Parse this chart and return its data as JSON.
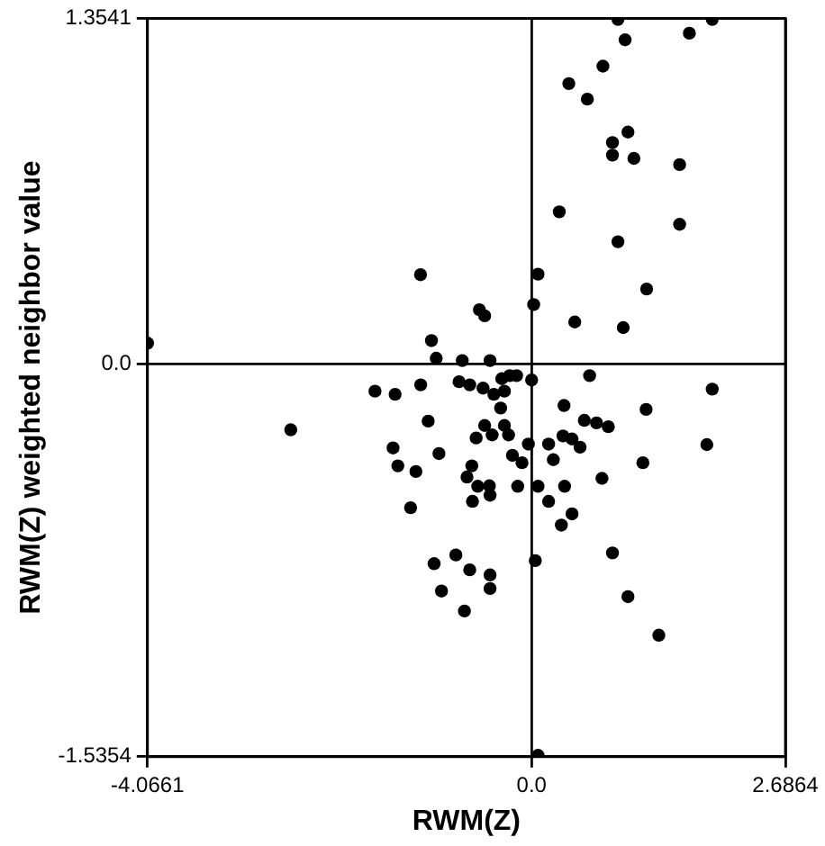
{
  "chart_data": {
    "type": "scatter",
    "xlabel": "RWM(Z)",
    "ylabel": "RWM(Z) weighted neighbor value",
    "xlim": [
      -4.0661,
      2.6864
    ],
    "ylim": [
      -1.5354,
      1.3541
    ],
    "xticks": [
      -4.0661,
      {
        "value": 0,
        "label": "0.0"
      },
      2.6864
    ],
    "yticks": [
      -1.5354,
      {
        "value": 0,
        "label": "0.0"
      },
      1.3541
    ],
    "grid": true,
    "marker": "circle",
    "series": [
      {
        "color": "#000000",
        "x": [
          -1.176,
          -1.06,
          -1.01,
          -4.066,
          0.914,
          1.912,
          1.67,
          0.99,
          0.755,
          0.394,
          0.59,
          1.02,
          0.856,
          0.856,
          1.083,
          1.567,
          0.293,
          1.567,
          0.914,
          0.068,
          1.218,
          0.022,
          -0.553,
          -0.497,
          0.457,
          0.97,
          -0.734,
          -0.44,
          0.614,
          1.912,
          0,
          -0.768,
          -0.655,
          -0.514,
          -0.4,
          -0.316,
          -0.232,
          -0.159,
          -0.288,
          -0.328,
          0.343,
          1.212,
          0.558,
          0.687,
          0.812,
          1.855,
          -0.497,
          -0.418,
          -0.288,
          -0.244,
          -0.587,
          -0.034,
          0.18,
          0.332,
          0.428,
          0.513,
          -0.203,
          -0.102,
          0.23,
          1.178,
          -0.633,
          -0.684,
          -0.57,
          -0.447,
          -0.44,
          -0.626,
          -0.147,
          0.068,
          0.349,
          0.745,
          0.18,
          0.428,
          0.315,
          -0.802,
          -0.655,
          -0.44,
          -0.44,
          -0.711,
          0.039,
          0.856,
          1.02,
          1.347,
          0.068,
          -1.658,
          -1.445,
          -1.174,
          -2.55,
          -1.095,
          -1.467,
          -1.416,
          -0.981,
          -1.225,
          -1.281,
          -1.032,
          -0.954
        ],
        "values": [
          0.351,
          0.093,
          0.024,
          0.083,
          1.35,
          1.35,
          1.296,
          1.27,
          1.167,
          1.099,
          1.038,
          0.909,
          0.868,
          0.819,
          0.806,
          0.782,
          0.597,
          0.548,
          0.48,
          0.353,
          0.295,
          0.234,
          0.214,
          0.19,
          0.166,
          0.144,
          0.015,
          0.015,
          -0.044,
          -0.097,
          -0.061,
          -0.068,
          -0.08,
          -0.093,
          -0.117,
          -0.056,
          -0.044,
          -0.044,
          -0.105,
          -0.171,
          -0.161,
          -0.176,
          -0.219,
          -0.229,
          -0.244,
          -0.314,
          -0.239,
          -0.276,
          -0.239,
          -0.276,
          -0.288,
          -0.312,
          -0.312,
          -0.28,
          -0.292,
          -0.324,
          -0.356,
          -0.385,
          -0.373,
          -0.385,
          -0.397,
          -0.441,
          -0.477,
          -0.475,
          -0.512,
          -0.536,
          -0.477,
          -0.477,
          -0.477,
          -0.446,
          -0.536,
          -0.585,
          -0.629,
          -0.746,
          -0.804,
          -0.824,
          -0.877,
          -0.965,
          -0.768,
          -0.738,
          -0.909,
          -1.06,
          -1.53,
          -0.105,
          -0.117,
          -0.08,
          -0.256,
          -0.222,
          -0.327,
          -0.397,
          -0.349,
          -0.419,
          -0.561,
          -0.78,
          -0.887
        ]
      }
    ]
  }
}
